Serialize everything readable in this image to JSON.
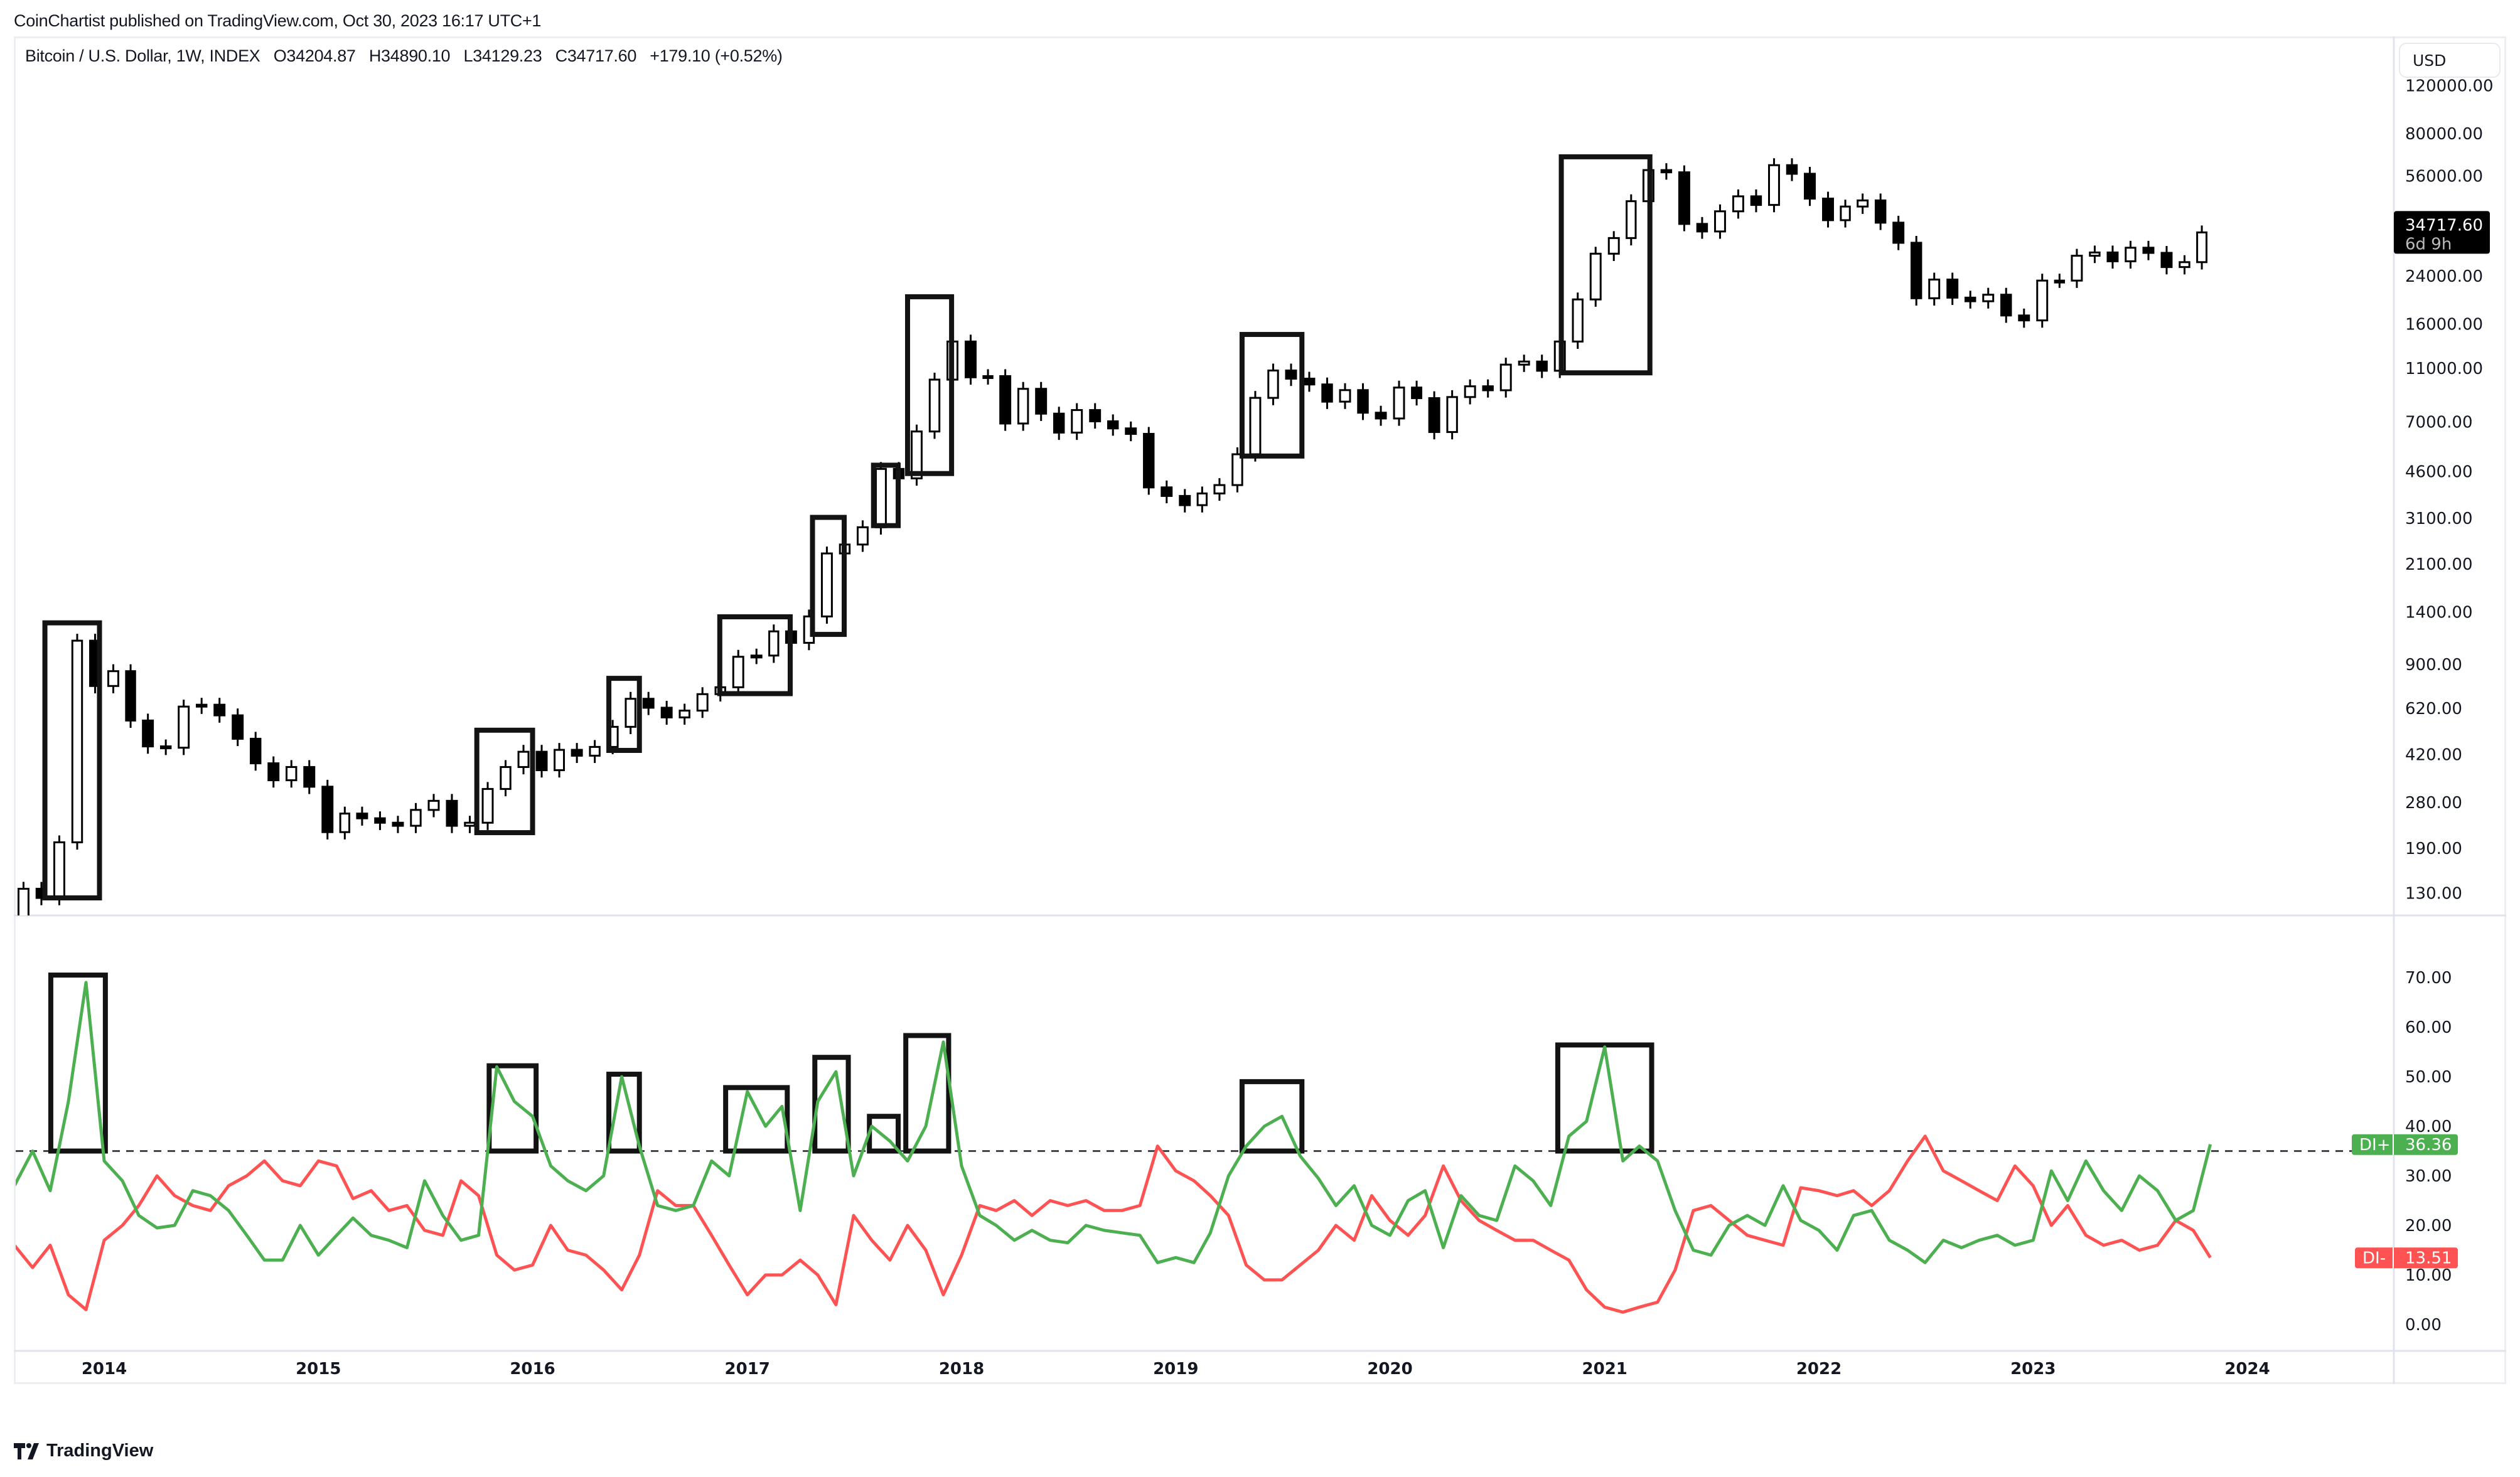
{
  "header": {
    "published": "CoinChartist published on TradingView.com, Oct 30, 2023 16:17 UTC+1"
  },
  "legend": {
    "symbol": "Bitcoin / U.S. Dollar, 1W, INDEX",
    "open": "O34204.87",
    "high": "H34890.10",
    "low": "L34129.23",
    "close": "C34717.60",
    "change": "+179.10 (+0.52%)"
  },
  "price_axis": {
    "currency": "USD",
    "ticks": [
      "120000.00",
      "80000.00",
      "56000.00",
      "24000.00",
      "16000.00",
      "11000.00",
      "7000.00",
      "4600.00",
      "3100.00",
      "2100.00",
      "1400.00",
      "900.00",
      "620.00",
      "420.00",
      "280.00",
      "190.00",
      "130.00"
    ],
    "last_price": "34717.60",
    "countdown": "6d 9h"
  },
  "indicator_axis": {
    "ticks": [
      "70.00",
      "60.00",
      "50.00",
      "40.00",
      "30.00",
      "20.00",
      "10.00",
      "0.00"
    ]
  },
  "time_axis": {
    "years": [
      "2014",
      "2015",
      "2016",
      "2017",
      "2018",
      "2019",
      "2020",
      "2021",
      "2022",
      "2023",
      "2024"
    ]
  },
  "footer": {
    "brand": "TradingView"
  },
  "colors": {
    "di_plus": "#4caf50",
    "di_minus": "#ff5252",
    "candle": "#000000",
    "box": "#131313",
    "level_line": "#434651"
  },
  "chart_data": [
    {
      "type": "candlestick",
      "scale": "log",
      "ylim": [
        100,
        130000
      ],
      "grid": false,
      "x": [
        "2013-08-01",
        "2013-09-01",
        "2013-10-01",
        "2013-11-01",
        "2013-12-01",
        "2014-01-01",
        "2014-02-01",
        "2014-03-01",
        "2014-04-01",
        "2014-05-01",
        "2014-06-01",
        "2014-07-01",
        "2014-08-01",
        "2014-09-01",
        "2014-10-01",
        "2014-11-01",
        "2014-12-01",
        "2015-01-01",
        "2015-02-01",
        "2015-03-01",
        "2015-04-01",
        "2015-05-01",
        "2015-06-01",
        "2015-07-01",
        "2015-08-01",
        "2015-09-01",
        "2015-10-01",
        "2015-11-01",
        "2015-12-01",
        "2016-01-01",
        "2016-02-01",
        "2016-03-01",
        "2016-04-01",
        "2016-05-01",
        "2016-06-01",
        "2016-07-01",
        "2016-08-01",
        "2016-09-01",
        "2016-10-01",
        "2016-11-01",
        "2016-12-01",
        "2017-01-01",
        "2017-02-01",
        "2017-03-01",
        "2017-04-01",
        "2017-05-01",
        "2017-06-01",
        "2017-07-01",
        "2017-08-01",
        "2017-09-01",
        "2017-10-01",
        "2017-11-01",
        "2017-12-01",
        "2018-01-01",
        "2018-02-01",
        "2018-03-01",
        "2018-04-01",
        "2018-05-01",
        "2018-06-01",
        "2018-07-01",
        "2018-08-01",
        "2018-09-01",
        "2018-10-01",
        "2018-11-01",
        "2018-12-01",
        "2019-01-01",
        "2019-02-01",
        "2019-03-01",
        "2019-04-01",
        "2019-05-01",
        "2019-06-01",
        "2019-07-01",
        "2019-08-01",
        "2019-09-01",
        "2019-10-01",
        "2019-11-01",
        "2019-12-01",
        "2020-01-01",
        "2020-02-01",
        "2020-03-01",
        "2020-04-01",
        "2020-05-01",
        "2020-06-01",
        "2020-07-01",
        "2020-08-01",
        "2020-09-01",
        "2020-10-01",
        "2020-11-01",
        "2020-12-01",
        "2021-01-01",
        "2021-02-01",
        "2021-03-01",
        "2021-04-01",
        "2021-05-01",
        "2021-06-01",
        "2021-07-01",
        "2021-08-01",
        "2021-09-01",
        "2021-10-01",
        "2021-11-01",
        "2021-12-01",
        "2022-01-01",
        "2022-02-01",
        "2022-03-01",
        "2022-04-01",
        "2022-05-01",
        "2022-06-01",
        "2022-07-01",
        "2022-08-01",
        "2022-09-01",
        "2022-10-01",
        "2022-11-01",
        "2022-12-01",
        "2023-01-01",
        "2023-02-01",
        "2023-03-01",
        "2023-04-01",
        "2023-05-01",
        "2023-06-01",
        "2023-07-01",
        "2023-08-01",
        "2023-09-01",
        "2023-10-01",
        "2023-10-30"
      ],
      "close": [
        100,
        135,
        125,
        200,
        1100,
        750,
        850,
        560,
        450,
        445,
        630,
        640,
        585,
        480,
        390,
        338,
        378,
        320,
        218,
        255,
        245,
        236,
        230,
        263,
        284,
        230,
        236,
        314,
        378,
        430,
        368,
        437,
        416,
        448,
        531,
        673,
        624,
        575,
        609,
        700,
        742,
        960,
        970,
        1190,
        1080,
        1350,
        2300,
        2480,
        2870,
        4700,
        4340,
        6450,
        10000,
        13800,
        10200,
        10300,
        6900,
        9250,
        7500,
        6390,
        7730,
        7030,
        6620,
        6320,
        4020,
        3740,
        3460,
        3820,
        4100,
        5320,
        8570,
        10800,
        10080,
        9600,
        8300,
        9150,
        7560,
        7200,
        9350,
        8550,
        6420,
        8630,
        9450,
        9140,
        11350,
        11650,
        10780,
        13800,
        19700,
        29000,
        33100,
        45200,
        58800,
        57700,
        37300,
        35000,
        41500,
        47100,
        43800,
        61300,
        57000,
        46200,
        38500,
        43200,
        45500,
        37700,
        31800,
        19900,
        23300,
        20000,
        19400,
        20500,
        17200,
        16500,
        23100,
        23100,
        28500,
        29300,
        27200,
        30500,
        29200,
        25900,
        27000,
        34717.6
      ],
      "annotation_boxes": [
        {
          "from": "2013-09-22",
          "to": "2013-12-24",
          "top": 1279,
          "bottom": 125
        },
        {
          "from": "2015-09-28",
          "to": "2016-01-01",
          "top": 516,
          "bottom": 217
        },
        {
          "from": "2016-05-10",
          "to": "2016-07-01",
          "top": 800,
          "bottom": 435
        },
        {
          "from": "2016-11-15",
          "to": "2017-03-15",
          "top": 1346,
          "bottom": 703
        },
        {
          "from": "2017-04-22",
          "to": "2017-06-15",
          "top": 3120,
          "bottom": 1160
        },
        {
          "from": "2017-08-04",
          "to": "2017-09-15",
          "top": 4850,
          "bottom": 2910
        },
        {
          "from": "2017-10-01",
          "to": "2017-12-15",
          "top": 20150,
          "bottom": 4520
        },
        {
          "from": "2019-04-24",
          "to": "2019-08-04",
          "top": 14650,
          "bottom": 5240
        },
        {
          "from": "2020-10-19",
          "to": "2021-03-19",
          "top": 65800,
          "bottom": 10590
        }
      ]
    },
    {
      "type": "line",
      "ylim": [
        -5,
        75
      ],
      "grid": false,
      "level": 35,
      "series": [
        {
          "name": "DI+",
          "last": "36.36",
          "values": [
            28,
            35,
            27,
            45,
            69,
            33,
            29,
            22,
            19.5,
            20,
            27,
            26,
            23,
            18,
            13,
            13,
            20,
            14,
            18,
            21.5,
            18,
            17,
            15.5,
            29,
            22,
            17,
            18,
            52,
            45,
            42,
            32,
            29,
            27,
            30,
            50,
            36,
            24,
            23,
            24,
            33,
            30,
            47,
            40,
            44,
            23,
            45,
            51,
            30,
            40,
            37,
            33,
            40,
            57,
            32,
            22,
            20,
            17,
            19,
            17,
            16.5,
            20,
            19,
            18.5,
            18,
            12.5,
            13.5,
            12.5,
            18.5,
            30,
            36,
            40,
            42,
            34,
            29.5,
            24,
            28,
            20,
            18,
            25,
            27,
            15.5,
            26,
            22,
            21,
            32,
            29,
            24,
            38,
            41,
            56,
            33,
            36,
            33,
            23,
            15,
            14,
            20,
            22,
            20,
            28,
            21,
            19,
            15,
            22,
            23,
            17,
            15,
            12.5,
            17,
            15.5,
            17,
            18,
            16,
            17,
            31,
            25,
            33,
            27,
            23,
            30,
            27,
            21,
            23,
            36.36
          ]
        },
        {
          "name": "DI-",
          "last": "13.51",
          "values": [
            16,
            11.5,
            16,
            6,
            3,
            17,
            20,
            24,
            30,
            26,
            24,
            23,
            28,
            30,
            33,
            29,
            28,
            33,
            32,
            25.4,
            27,
            23,
            24,
            19,
            18,
            29,
            26,
            14,
            11,
            12,
            20,
            15,
            14,
            11,
            7,
            14,
            27,
            24,
            24,
            18,
            12,
            6,
            10,
            10,
            13,
            10,
            4,
            22,
            17,
            13,
            20,
            15,
            6,
            14,
            24,
            23,
            25,
            22,
            25,
            24,
            25,
            23,
            23,
            24,
            36,
            31,
            29,
            26,
            22,
            12,
            9,
            9,
            12,
            15,
            20,
            17,
            26,
            21,
            18,
            22,
            32,
            25,
            21,
            19,
            17,
            17,
            15,
            13,
            7,
            3.5,
            2.5,
            3.5,
            4.5,
            11,
            23,
            24,
            21,
            18,
            17,
            16,
            27.6,
            27,
            26,
            27,
            24,
            27,
            33,
            38,
            31,
            29,
            27,
            25,
            32,
            28,
            20,
            24,
            18,
            16,
            17,
            15,
            16,
            21,
            19,
            13.51
          ]
        }
      ],
      "annotation_boxes": [
        {
          "from": "2013-10-02",
          "to": "2014-01-03",
          "top": 70.5,
          "bottom": 35
        },
        {
          "from": "2015-10-19",
          "to": "2016-01-07",
          "top": 52.2,
          "bottom": 35
        },
        {
          "from": "2016-05-10",
          "to": "2016-07-01",
          "top": 50.5,
          "bottom": 35
        },
        {
          "from": "2016-11-25",
          "to": "2017-03-10",
          "top": 47.8,
          "bottom": 35
        },
        {
          "from": "2017-04-26",
          "to": "2017-06-22",
          "top": 53.9,
          "bottom": 35
        },
        {
          "from": "2017-07-28",
          "to": "2017-09-15",
          "top": 42,
          "bottom": 35
        },
        {
          "from": "2017-09-28",
          "to": "2017-12-10",
          "top": 58.3,
          "bottom": 35
        },
        {
          "from": "2019-04-24",
          "to": "2019-08-04",
          "top": 49,
          "bottom": 35
        },
        {
          "from": "2020-10-13",
          "to": "2021-03-22",
          "top": 56.4,
          "bottom": 35
        }
      ]
    }
  ]
}
